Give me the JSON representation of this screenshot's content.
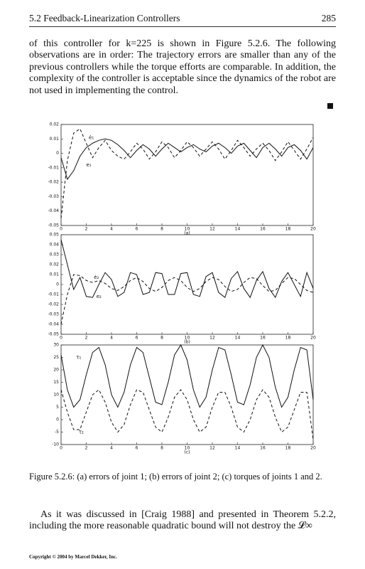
{
  "header": {
    "section": "5.2 Feedback-Linearization Controllers",
    "page": "285"
  },
  "paragraphs": [
    "of this controller for k=225 is shown in Figure 5.2.6. The following observations are in order: The trajectory errors are smaller than any of the previous controllers while the torque efforts are comparable. In addition, the complexity of the controller is acceptable since the dynamics of the robot are not used in implementing the control.",
    "As it was discussed in [Craig 1988] and presented in Theorem 5.2.2, including the more reasonable quadratic bound will not destroy the 𝓛∞"
  ],
  "chart_data": [
    {
      "type": "line",
      "xlabel": "(a)",
      "xlim": [
        0,
        20
      ],
      "ylim": [
        -0.05,
        0.02
      ],
      "xticks": [
        0,
        2,
        4,
        6,
        8,
        10,
        12,
        14,
        16,
        18,
        20
      ],
      "yticks": [
        -0.05,
        -0.04,
        -0.03,
        -0.02,
        -0.01,
        0,
        0.01,
        0.02
      ],
      "x": [
        0,
        0.5,
        1,
        1.5,
        2,
        2.5,
        3,
        3.5,
        4,
        4.5,
        5,
        5.5,
        6,
        6.5,
        7,
        7.5,
        8,
        8.5,
        9,
        9.5,
        10,
        10.5,
        11,
        11.5,
        12,
        12.5,
        13,
        13.5,
        14,
        14.5,
        15,
        15.5,
        16,
        16.5,
        17,
        17.5,
        18,
        18.5,
        19,
        19.5,
        20
      ],
      "series": [
        {
          "color": "#111111",
          "style": "solid",
          "values": [
            -0.003,
            -0.018,
            -0.012,
            -0.002,
            0.004,
            0.007,
            0.009,
            0.01,
            0.009,
            0.006,
            0.002,
            -0.003,
            0.002,
            0.006,
            0.003,
            -0.002,
            0.003,
            0.007,
            0.004,
            0.001,
            0.004,
            0.006,
            0.003,
            0.001,
            0.005,
            0.007,
            0.004,
            0,
            0.005,
            0.007,
            0.002,
            -0.003,
            0.004,
            0.007,
            0.003,
            -0.002,
            0.004,
            0.006,
            0.002,
            -0.004,
            0.004
          ]
        },
        {
          "color": "#111111",
          "style": "dashed",
          "values": [
            -0.045,
            -0.005,
            0.014,
            0.017,
            0.007,
            -0.003,
            0.004,
            0.009,
            0.002,
            -0.002,
            -0.004,
            0.001,
            0.007,
            0.003,
            -0.004,
            0.001,
            0.008,
            0.004,
            -0.003,
            0.002,
            0.008,
            0.004,
            -0.002,
            0.003,
            0.008,
            0.003,
            -0.004,
            0.002,
            0.009,
            0.004,
            -0.002,
            0.003,
            0.007,
            0.002,
            -0.005,
            0.001,
            0.008,
            0.002,
            -0.004,
            0.003,
            0.011
          ]
        }
      ],
      "annotations": [
        {
          "text": "ė₁",
          "x": 2.2,
          "y": 0.011
        },
        {
          "text": "e₁",
          "x": 2,
          "y": -0.008
        }
      ]
    },
    {
      "type": "line",
      "xlabel": "(b)",
      "xlim": [
        0,
        20
      ],
      "ylim": [
        -0.05,
        0.05
      ],
      "xticks": [
        0,
        2,
        4,
        6,
        8,
        10,
        12,
        14,
        16,
        18,
        20
      ],
      "yticks": [
        -0.05,
        -0.04,
        -0.03,
        -0.02,
        -0.01,
        0,
        0.01,
        0.02,
        0.03,
        0.04,
        0.05
      ],
      "x": [
        0,
        0.5,
        1,
        1.5,
        2,
        2.5,
        3,
        3.5,
        4,
        4.5,
        5,
        5.5,
        6,
        6.5,
        7,
        7.5,
        8,
        8.5,
        9,
        9.5,
        10,
        10.5,
        11,
        11.5,
        12,
        12.5,
        13,
        13.5,
        14,
        14.5,
        15,
        15.5,
        16,
        16.5,
        17,
        17.5,
        18,
        18.5,
        19,
        19.5,
        20
      ],
      "series": [
        {
          "color": "#111111",
          "style": "solid",
          "values": [
            0.045,
            0.02,
            -0.005,
            0.007,
            -0.012,
            -0.013,
            0,
            0.012,
            0.005,
            -0.012,
            -0.008,
            0.012,
            0.01,
            -0.01,
            -0.008,
            0.012,
            0.011,
            -0.01,
            -0.01,
            0.011,
            0.012,
            -0.01,
            -0.012,
            0.008,
            0.012,
            -0.008,
            -0.013,
            0.006,
            0.013,
            -0.004,
            -0.013,
            0.004,
            0.013,
            -0.004,
            -0.013,
            0.003,
            0.012,
            0,
            -0.012,
            0.012,
            -0.004
          ]
        },
        {
          "color": "#111111",
          "style": "dashed",
          "values": [
            -0.04,
            -0.01,
            0.01,
            0.009,
            0.004,
            0.002,
            0.004,
            0.001,
            -0.004,
            -0.006,
            -0.002,
            0.004,
            0.007,
            0.003,
            -0.004,
            -0.007,
            -0.003,
            0.004,
            0.007,
            0.004,
            -0.003,
            -0.007,
            -0.004,
            0.003,
            0.007,
            0.005,
            -0.002,
            -0.007,
            -0.005,
            0.002,
            0.007,
            0.006,
            -0.001,
            -0.007,
            -0.006,
            0.001,
            0.007,
            0.006,
            0,
            -0.006,
            -0.008
          ]
        }
      ],
      "annotations": [
        {
          "text": "ė₂",
          "x": 2.6,
          "y": 0.007
        },
        {
          "text": "e₂",
          "x": 2.8,
          "y": -0.012
        }
      ]
    },
    {
      "type": "line",
      "xlabel": "(c)",
      "xlim": [
        0,
        20
      ],
      "ylim": [
        -10,
        30
      ],
      "xticks": [
        0,
        2,
        4,
        6,
        8,
        10,
        12,
        14,
        16,
        18,
        20
      ],
      "yticks": [
        -10,
        -5,
        0,
        5,
        10,
        15,
        20,
        25,
        30
      ],
      "x": [
        0,
        0.5,
        1,
        1.5,
        2,
        2.5,
        3,
        3.5,
        4,
        4.5,
        5,
        5.5,
        6,
        6.5,
        7,
        7.5,
        8,
        8.5,
        9,
        9.5,
        10,
        10.5,
        11,
        11.5,
        12,
        12.5,
        13,
        13.5,
        14,
        14.5,
        15,
        15.5,
        16,
        16.5,
        17,
        17.5,
        18,
        18.5,
        19,
        19.5,
        20
      ],
      "series": [
        {
          "color": "#111111",
          "style": "solid",
          "values": [
            26,
            12,
            5,
            8,
            18,
            27,
            29,
            22,
            10,
            5,
            11,
            22,
            29,
            27,
            17,
            7,
            6,
            15,
            26,
            30,
            24,
            12,
            5,
            9,
            20,
            29,
            28,
            18,
            7,
            6,
            14,
            25,
            30,
            25,
            13,
            5,
            9,
            20,
            29,
            28,
            8
          ]
        },
        {
          "color": "#111111",
          "style": "dashed",
          "values": [
            12,
            3,
            -4,
            -4,
            3,
            10,
            12,
            7,
            -1,
            -5,
            -2,
            6,
            12,
            11,
            4,
            -3,
            -5,
            1,
            9,
            12,
            8,
            0,
            -5,
            -3,
            5,
            11,
            11,
            5,
            -3,
            -5,
            0,
            8,
            12,
            9,
            1,
            -5,
            -3,
            4,
            11,
            11,
            -8
          ]
        }
      ],
      "annotations": [
        {
          "text": "τ₁",
          "x": 1.2,
          "y": 25
        },
        {
          "text": "τ₂",
          "x": 1.4,
          "y": -5
        }
      ]
    }
  ],
  "caption": "Figure 5.2.6: (a) errors of joint 1; (b) errors of joint 2; (c) torques of joints 1 and 2.",
  "footer": "Copyright © 2004 by Marcel Dekker, Inc."
}
